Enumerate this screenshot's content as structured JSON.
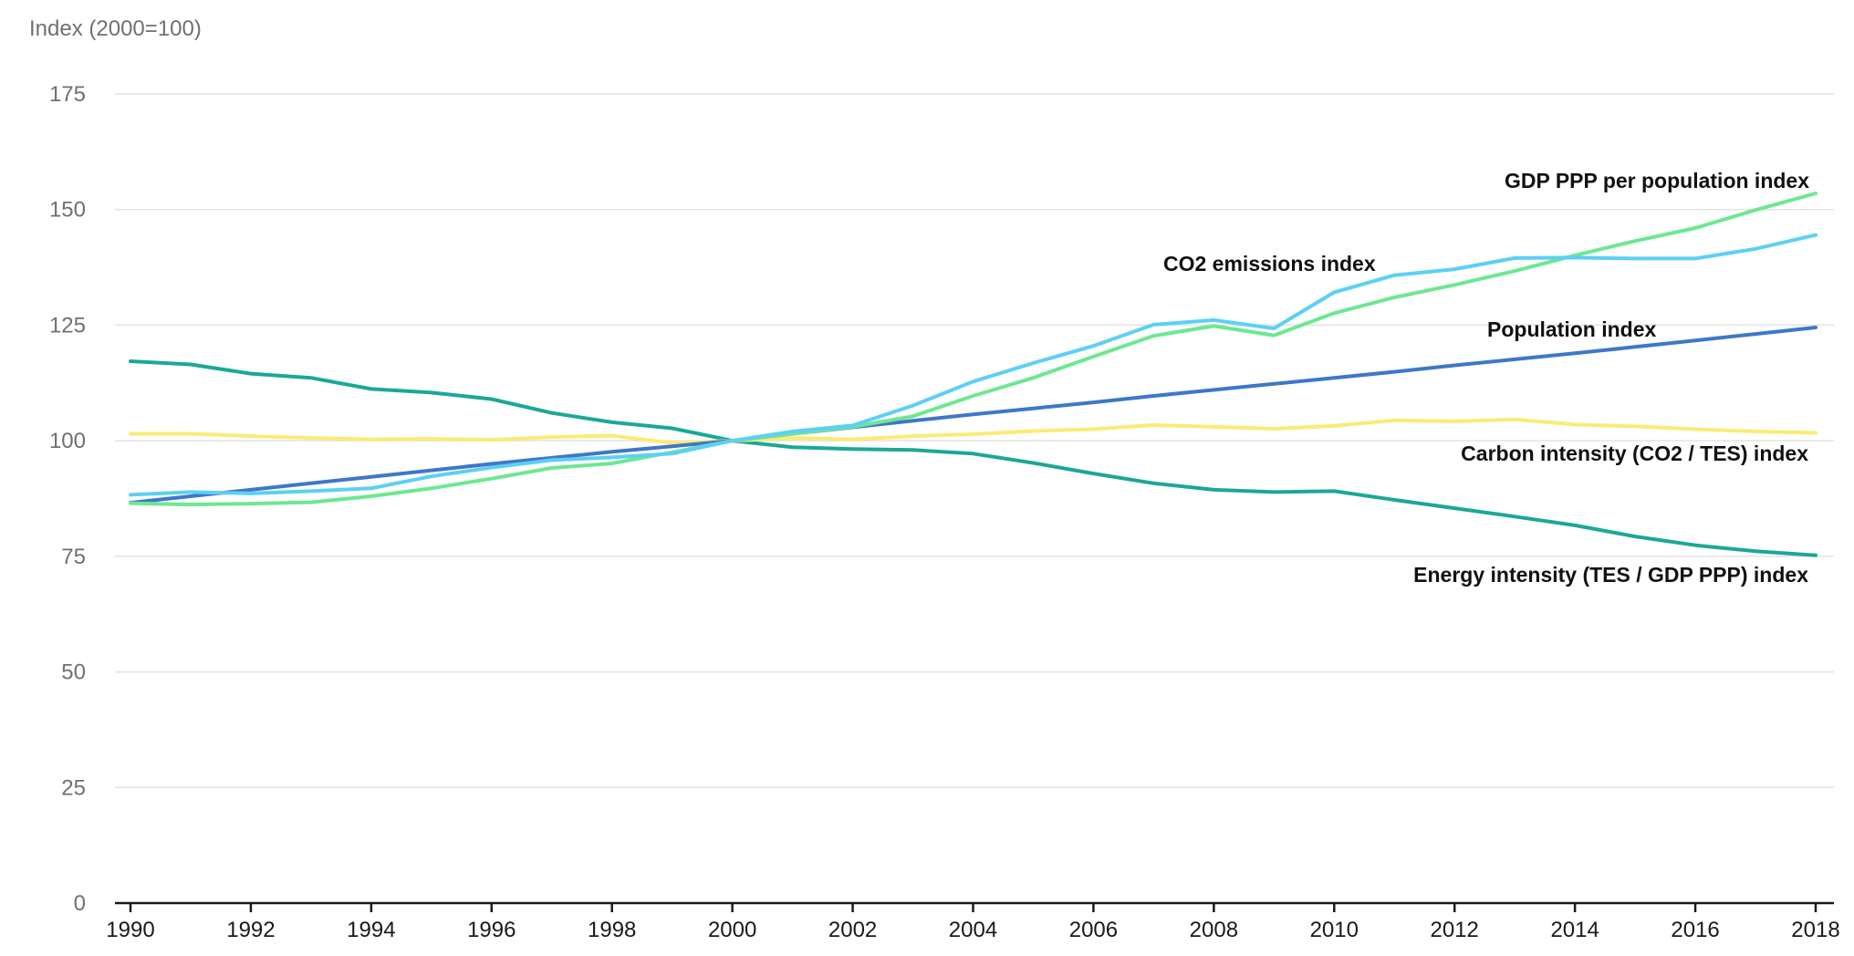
{
  "chart_data": {
    "type": "line",
    "ylabel": "Index (2000=100)",
    "xlabel": "",
    "ylim": [
      0,
      175
    ],
    "yticks": [
      0,
      25,
      50,
      75,
      100,
      125,
      150,
      175
    ],
    "xlim": [
      1990,
      2018
    ],
    "xticks": [
      1990,
      1992,
      1994,
      1996,
      1998,
      2000,
      2002,
      2004,
      2006,
      2008,
      2010,
      2012,
      2014,
      2016,
      2018
    ],
    "grid": true,
    "legend": "inline labels",
    "x": [
      1990,
      1991,
      1992,
      1993,
      1994,
      1995,
      1996,
      1997,
      1998,
      1999,
      2000,
      2001,
      2002,
      2003,
      2004,
      2005,
      2006,
      2007,
      2008,
      2009,
      2010,
      2011,
      2012,
      2013,
      2014,
      2015,
      2016,
      2017,
      2018
    ],
    "series": [
      {
        "name": "Energy intensity (TES / GDP PPP) index",
        "color": "#1aa898",
        "values": [
          117.2,
          116.5,
          114.5,
          113.6,
          111.2,
          110.4,
          109.0,
          106.0,
          104.0,
          102.7,
          100.0,
          98.6,
          98.2,
          98.0,
          97.2,
          95.2,
          92.9,
          90.8,
          89.4,
          88.9,
          89.1,
          87.2,
          85.4,
          83.6,
          81.7,
          79.3,
          77.4,
          76.1,
          75.2
        ]
      },
      {
        "name": "Carbon intensity (CO2 / TES) index",
        "color": "#fbeb75",
        "values": [
          101.5,
          101.5,
          101.0,
          100.6,
          100.3,
          100.4,
          100.2,
          100.8,
          101.1,
          99.5,
          100.0,
          100.6,
          100.3,
          101.0,
          101.4,
          102.1,
          102.5,
          103.4,
          103.0,
          102.6,
          103.2,
          104.4,
          104.2,
          104.6,
          103.5,
          103.1,
          102.5,
          102.0,
          101.7
        ]
      },
      {
        "name": "Population index",
        "color": "#3f77c9",
        "values": [
          86.6,
          88.0,
          89.4,
          90.8,
          92.2,
          93.6,
          95.0,
          96.3,
          97.6,
          98.8,
          100.0,
          101.5,
          102.9,
          104.3,
          105.7,
          107.0,
          108.3,
          109.7,
          111.0,
          112.3,
          113.6,
          114.9,
          116.3,
          117.6,
          118.9,
          120.3,
          121.7,
          123.1,
          124.5
        ]
      },
      {
        "name": "GDP PPP per population index",
        "color": "#6ce891",
        "values": [
          86.5,
          86.2,
          86.4,
          86.7,
          88.0,
          89.7,
          91.8,
          94.1,
          95.1,
          97.5,
          100.0,
          101.5,
          103.0,
          105.3,
          109.7,
          113.6,
          118.2,
          122.7,
          124.8,
          122.8,
          127.6,
          131.0,
          133.7,
          136.7,
          140.1,
          143.2,
          146.0,
          149.9,
          153.5
        ]
      },
      {
        "name": "CO2 emissions index",
        "color": "#5cd0f5",
        "values": [
          88.3,
          88.9,
          88.6,
          89.1,
          89.7,
          92.3,
          94.2,
          95.8,
          96.4,
          97.2,
          100.0,
          102.0,
          103.3,
          107.6,
          112.8,
          116.8,
          120.5,
          125.1,
          126.1,
          124.3,
          132.1,
          135.8,
          137.1,
          139.5,
          139.6,
          139.4,
          139.4,
          141.5,
          144.5
        ]
      }
    ]
  }
}
